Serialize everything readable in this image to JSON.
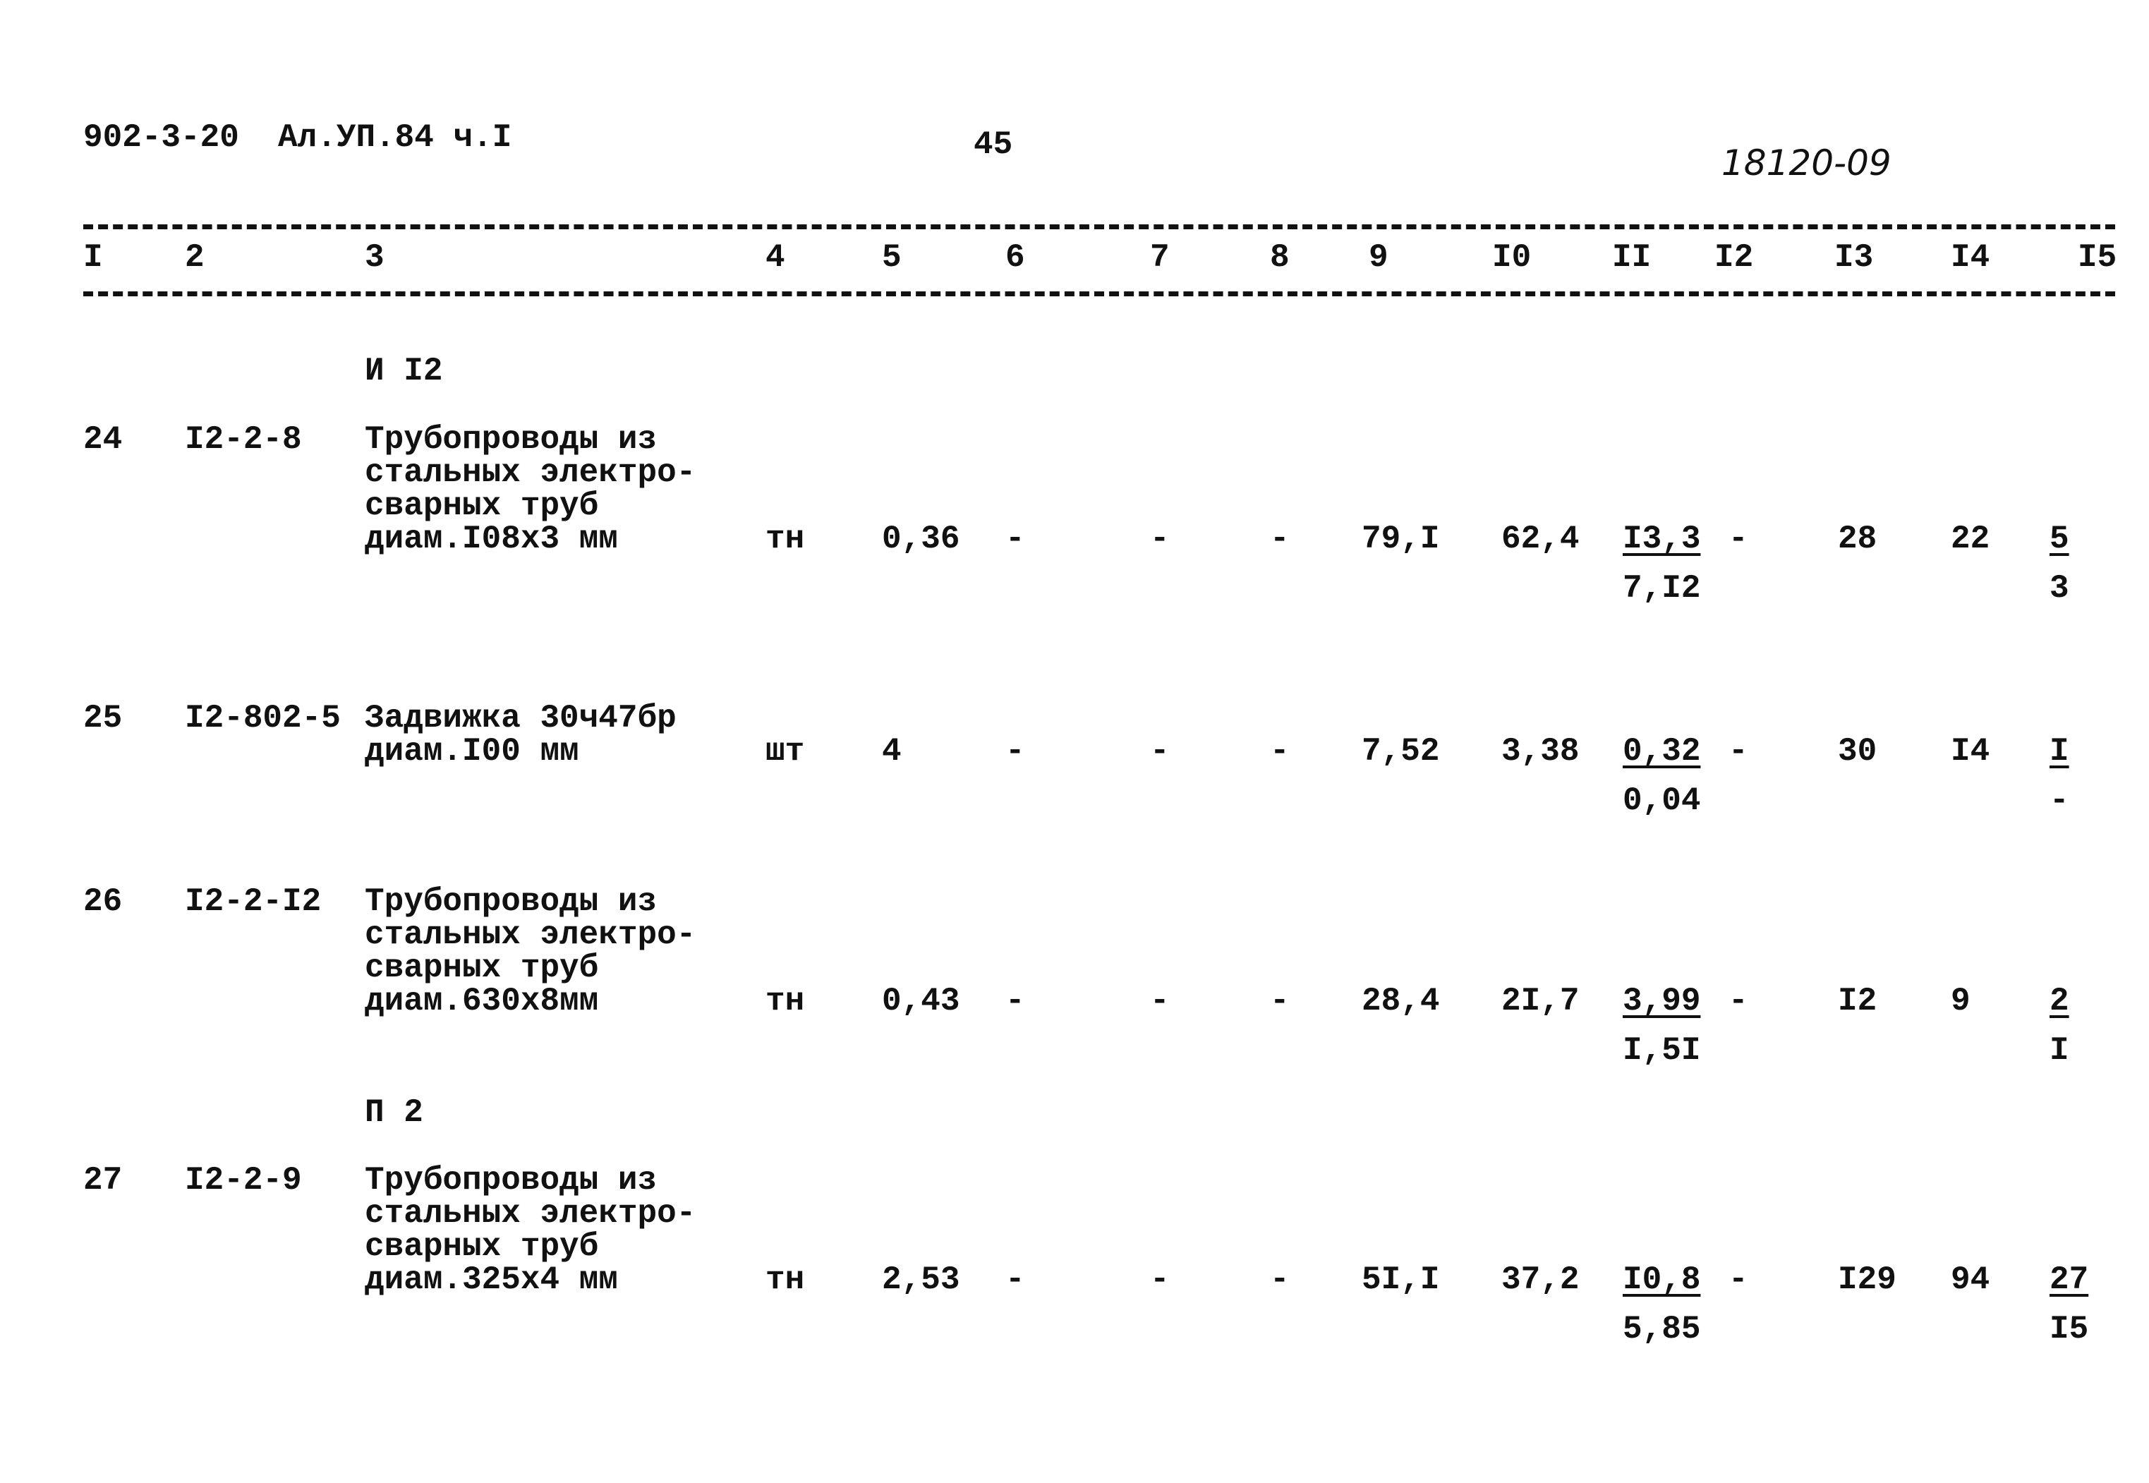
{
  "header": {
    "doc_code": "902-3-20  Ал.УП.84 ч.I",
    "page_number": "45",
    "stamp_number": "18120-09"
  },
  "columns": [
    "I",
    "2",
    "3",
    "4",
    "5",
    "6",
    "7",
    "8",
    "9",
    "I0",
    "II",
    "I2",
    "I3",
    "I4",
    "I5"
  ],
  "sections": [
    {
      "label": "И I2"
    },
    {
      "label": "П 2"
    }
  ],
  "rows": [
    {
      "num": "24",
      "code": "I2-2-8",
      "desc": [
        "Трубопроводы из",
        "стальных электро-",
        "сварных труб",
        "диам.I08x3 мм"
      ],
      "unit": "тн",
      "c5": "0,36",
      "c6": "-",
      "c7": "-",
      "c8": "-",
      "c9": "79,I",
      "c10": "62,4",
      "c11_num": "I3,3",
      "c11_den": "7,I2",
      "c12": "-",
      "c13": "28",
      "c14": "22",
      "c15_num": "5",
      "c15_den": "3"
    },
    {
      "num": "25",
      "code": "I2-802-5",
      "desc": [
        "Задвижка 30ч47бр",
        "диам.I00 мм"
      ],
      "unit": "шт",
      "c5": "4",
      "c6": "-",
      "c7": "-",
      "c8": "-",
      "c9": "7,52",
      "c10": "3,38",
      "c11_num": "0,32",
      "c11_den": "0,04",
      "c12": "-",
      "c13": "30",
      "c14": "I4",
      "c15_num": "I",
      "c15_den": "-"
    },
    {
      "num": "26",
      "code": "I2-2-I2",
      "desc": [
        "Трубопроводы из",
        "стальных электро-",
        "сварных труб",
        "диам.630x8мм"
      ],
      "unit": "тн",
      "c5": "0,43",
      "c6": "-",
      "c7": "-",
      "c8": "-",
      "c9": "28,4",
      "c10": "2I,7",
      "c11_num": "3,99",
      "c11_den": "I,5I",
      "c12": "-",
      "c13": "I2",
      "c14": "9",
      "c15_num": "2",
      "c15_den": "I"
    },
    {
      "num": "27",
      "code": "I2-2-9",
      "desc": [
        "Трубопроводы из",
        "стальных электро-",
        "сварных труб",
        "диам.325x4 мм"
      ],
      "unit": "тн",
      "c5": "2,53",
      "c6": "-",
      "c7": "-",
      "c8": "-",
      "c9": "5I,I",
      "c10": "37,2",
      "c11_num": "I0,8",
      "c11_den": "5,85",
      "c12": "-",
      "c13": "I29",
      "c14": "94",
      "c15_num": "27",
      "c15_den": "I5"
    }
  ]
}
